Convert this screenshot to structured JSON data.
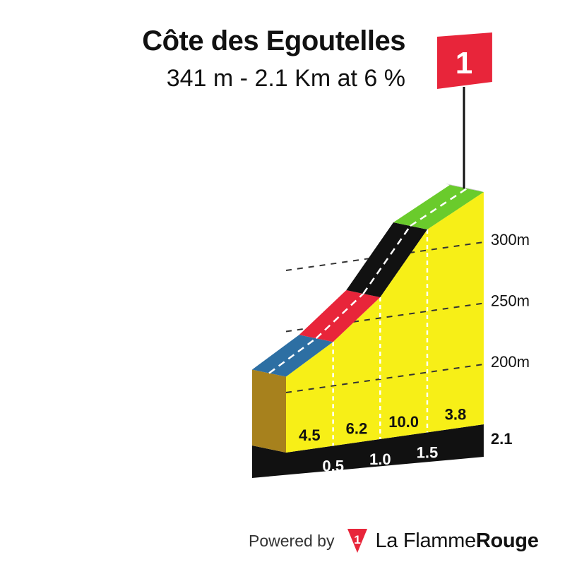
{
  "chart_data": {
    "type": "area",
    "title": "Côte des Egoutelles",
    "subtitle": "341 m - 2.1 Km at 6 %",
    "summit_marker": "1",
    "y_ticks": [
      {
        "value": 200,
        "label": "200m"
      },
      {
        "value": 250,
        "label": "250m"
      },
      {
        "value": 300,
        "label": "300m"
      }
    ],
    "km_ticks": [
      {
        "km": 0.5,
        "label": "0.5"
      },
      {
        "km": 1.0,
        "label": "1.0"
      },
      {
        "km": 1.5,
        "label": "1.5"
      },
      {
        "km": 2.1,
        "label": "2.1"
      }
    ],
    "segments": [
      {
        "start_km": 0.0,
        "end_km": 0.5,
        "gradient": "4.5",
        "color": "#2d6fa3"
      },
      {
        "start_km": 0.5,
        "end_km": 1.0,
        "gradient": "6.2",
        "color": "#e8253a"
      },
      {
        "start_km": 1.0,
        "end_km": 1.5,
        "gradient": "10.0",
        "color": "#111111"
      },
      {
        "start_km": 1.5,
        "end_km": 2.1,
        "gradient": "3.8",
        "color": "#6acb2c"
      }
    ],
    "profile_points": [
      {
        "km": 0.0,
        "alt": 213
      },
      {
        "km": 0.5,
        "alt": 236
      },
      {
        "km": 1.0,
        "alt": 267
      },
      {
        "km": 1.5,
        "alt": 317
      },
      {
        "km": 2.1,
        "alt": 341
      }
    ],
    "ylim": [
      165,
      345
    ],
    "fill_color": "#f7ef17",
    "side_color": "#a7811d"
  },
  "footer": {
    "powered_label": "Powered by",
    "brand_icon": "flame-rouge-icon",
    "brand_icon_text": "1",
    "brand_light": "La Flamme",
    "brand_bold": "Rouge"
  }
}
